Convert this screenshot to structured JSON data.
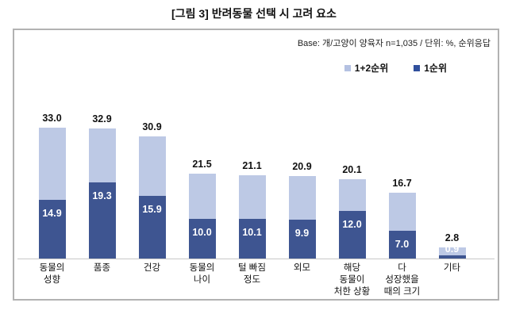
{
  "title": "[그림 3] 반려동물 선택 시 고려 요소",
  "base_note": "Base: 개/고양이 양육자 n=1,035 / 단위: %, 순위응답",
  "legend": {
    "series1_label": "1+2순위",
    "series2_label": "1순위"
  },
  "colors": {
    "light_blue": "#bdc9e5",
    "dark_blue": "#3e5591",
    "legend_light": "#b4c1e2",
    "legend_dark": "#30509d",
    "frame_border": "#b2b2b2",
    "baseline": "#c8c8c8"
  },
  "chart_data": {
    "type": "bar",
    "subtype": "overlay-ranked",
    "title": "[그림 3] 반려동물 선택 시 고려 요소",
    "xlabel": "",
    "ylabel": "%",
    "unit": "%, 순위응답",
    "base": "개/고양이 양육자 n=1,035",
    "ylim": [
      0,
      36
    ],
    "grid": false,
    "legend_position": "top-right",
    "categories": [
      "동물의 성향",
      "품종",
      "건강",
      "동물의 나이",
      "털 빠짐 정도",
      "외모",
      "해당 동물이 처한 상황",
      "다 성장했을 때의 크기",
      "기타"
    ],
    "category_lines": [
      [
        "동물의",
        "성향"
      ],
      [
        "품종"
      ],
      [
        "건강"
      ],
      [
        "동물의",
        "나이"
      ],
      [
        "털 빠짐",
        "정도"
      ],
      [
        "외모"
      ],
      [
        "해당",
        "동물이",
        "처한 상황"
      ],
      [
        "다",
        "성장했을",
        "때의 크기"
      ],
      [
        "기타"
      ]
    ],
    "series": [
      {
        "name": "1+2순위",
        "color": "#bdc9e5",
        "values": [
          33.0,
          32.9,
          30.9,
          21.5,
          21.1,
          20.9,
          20.1,
          16.7,
          2.8
        ]
      },
      {
        "name": "1순위",
        "color": "#3e5591",
        "values": [
          14.9,
          19.3,
          15.9,
          10.0,
          10.1,
          9.9,
          12.0,
          7.0,
          0.9
        ]
      }
    ]
  }
}
